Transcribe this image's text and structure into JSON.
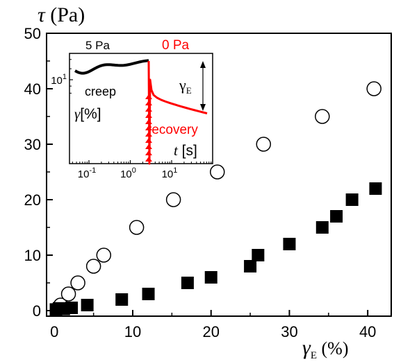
{
  "chart_data": [
    {
      "type": "scatter",
      "ylabel_symbol": "τ",
      "ylabel_unit": " (Pa)",
      "xlabel_symbol": "γ",
      "xlabel_sub": "E",
      "xlabel_unit": " (%)",
      "xlim": [
        -1,
        43
      ],
      "ylim": [
        -1,
        50
      ],
      "xticks": [
        0,
        10,
        20,
        30,
        40
      ],
      "yticks": [
        0,
        10,
        20,
        30,
        40,
        50
      ],
      "series": [
        {
          "marker": "open-circle",
          "color": "#000000",
          "points": [
            [
              0.5,
              0.5
            ],
            [
              0.8,
              1
            ],
            [
              1.8,
              3
            ],
            [
              3,
              5
            ],
            [
              5,
              8
            ],
            [
              6.3,
              10
            ],
            [
              10.5,
              15
            ],
            [
              15.2,
              20
            ],
            [
              20.8,
              25
            ],
            [
              26.7,
              30
            ],
            [
              34.2,
              35
            ],
            [
              40.8,
              40
            ]
          ]
        },
        {
          "marker": "filled-square",
          "color": "#000000",
          "points": [
            [
              0.2,
              0.2
            ],
            [
              0.6,
              0.4
            ],
            [
              1.2,
              0.3
            ],
            [
              2.2,
              0.5
            ],
            [
              4.2,
              1
            ],
            [
              8.6,
              2
            ],
            [
              12,
              3
            ],
            [
              17,
              5
            ],
            [
              20,
              6
            ],
            [
              25,
              8
            ],
            [
              26,
              10
            ],
            [
              30,
              12
            ],
            [
              34.2,
              15
            ],
            [
              36,
              17
            ],
            [
              38,
              20
            ],
            [
              41,
              22
            ]
          ]
        }
      ]
    },
    {
      "type": "line",
      "inset": true,
      "xscale": "log",
      "yscale": "log",
      "x_exponents": [
        -1,
        0,
        1
      ],
      "y_tick_value": 10,
      "xlabel_symbol": "t",
      "xlabel_unit": " [s]",
      "ylabel_symbol": "γ",
      "ylabel_unit": "[%]",
      "top_left_label": "5 Pa",
      "top_right_label": "0 Pa",
      "creep_label": "creep",
      "recovery_label": "recovery",
      "arrow_symbol": "γ",
      "arrow_sub": "E",
      "creep_color": "#000000",
      "recovery_color": "#ff0000"
    }
  ]
}
